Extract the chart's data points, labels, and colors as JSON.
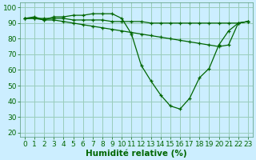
{
  "x": [
    0,
    1,
    2,
    3,
    4,
    5,
    6,
    7,
    8,
    9,
    10,
    11,
    12,
    13,
    14,
    15,
    16,
    17,
    18,
    19,
    20,
    21,
    22,
    23
  ],
  "line1": [
    93,
    94,
    92,
    94,
    94,
    95,
    95,
    96,
    96,
    96,
    93,
    83,
    63,
    53,
    44,
    37,
    35,
    42,
    55,
    61,
    76,
    85,
    90,
    91
  ],
  "line2": [
    93,
    93,
    92,
    92,
    91,
    90,
    89,
    88,
    87,
    86,
    85,
    84,
    83,
    82,
    81,
    80,
    79,
    78,
    77,
    76,
    75,
    76,
    90,
    91
  ],
  "line3": [
    93,
    93,
    93,
    93,
    93,
    92,
    92,
    92,
    92,
    91,
    91,
    91,
    91,
    90,
    90,
    90,
    90,
    90,
    90,
    90,
    90,
    90,
    90,
    91
  ],
  "bg_color": "#cceeff",
  "grid_color": "#99ccbb",
  "line_color": "#006600",
  "marker": "+",
  "xlabel": "Humidité relative (%)",
  "xlabel_color": "#006600",
  "yticks": [
    20,
    30,
    40,
    50,
    60,
    70,
    80,
    90,
    100
  ],
  "xlim": [
    -0.5,
    23.5
  ],
  "ylim": [
    17,
    103
  ],
  "tick_fontsize": 6.5,
  "xlabel_fontsize": 7.5
}
